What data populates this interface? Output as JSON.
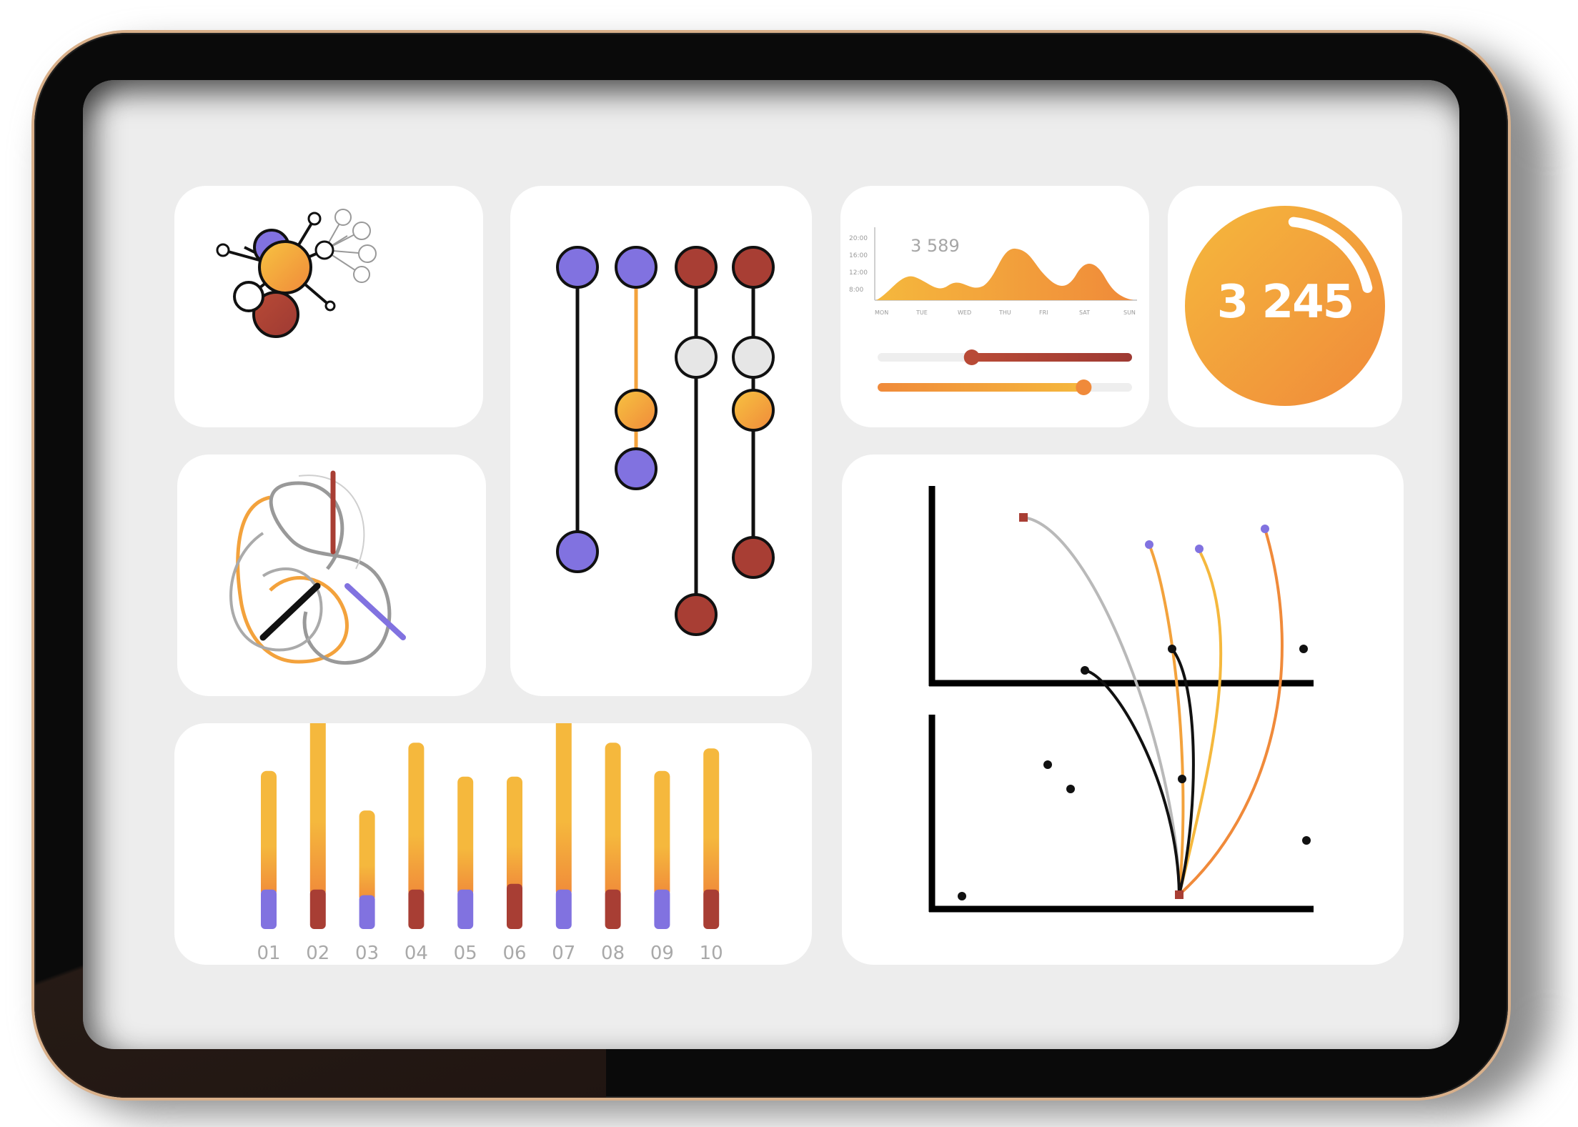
{
  "stat_card": {
    "value": "3 245",
    "progress": 0.2
  },
  "area_card": {
    "label": "3 589",
    "y_ticks": [
      "20:00",
      "16:00",
      "12:00",
      "8:00"
    ],
    "x_ticks": [
      "MON",
      "TUE",
      "WED",
      "THU",
      "FRI",
      "SAT",
      "SUN"
    ],
    "slider_1": 0.37,
    "slider_2": 0.81
  },
  "bar_card": {
    "chart_data": {
      "type": "bar",
      "categories": [
        "01",
        "02",
        "03",
        "04",
        "05",
        "06",
        "07",
        "08",
        "09",
        "10"
      ],
      "series": [
        {
          "values": [
            42,
            64,
            30,
            52,
            40,
            38,
            64,
            52,
            42,
            50
          ]
        },
        {
          "values": [
            14,
            14,
            12,
            14,
            14,
            16,
            14,
            14,
            14,
            14
          ]
        }
      ]
    },
    "bottom_colors": [
      "#8172e0",
      "#a83e34",
      "#8172e0",
      "#a83e34",
      "#8172e0",
      "#a83e34",
      "#8172e0",
      "#a83e34",
      "#8172e0",
      "#a83e34"
    ]
  },
  "colors": {
    "purple": "#8172e0",
    "orange": "#f3a23c",
    "yellow": "#f5b83d",
    "red": "#a83e34",
    "grey_node": "#e6e6e6",
    "grey_line": "#b9b9b9",
    "dark": "#111111"
  },
  "icons": [
    "network-diagram-icon",
    "timeline-diagram-icon",
    "knot-diagram-icon",
    "scatter-curve-icon"
  ]
}
